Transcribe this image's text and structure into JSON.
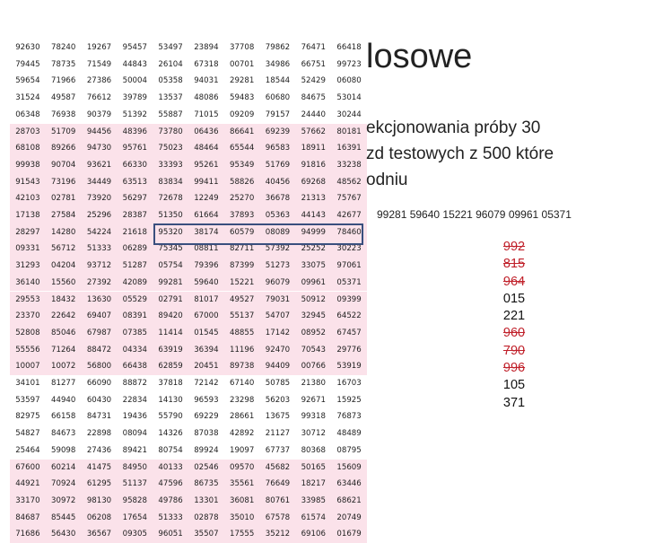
{
  "slide": {
    "title_fragment": "losowe",
    "description_lines": [
      "ekcjonowania próby 30",
      "zd testowych z 500 które",
      "odniu"
    ],
    "sequence": "99281 59640 15221 96079 09961 05371",
    "numbers": [
      {
        "text": "992",
        "struck": true
      },
      {
        "text": "815",
        "struck": true
      },
      {
        "text": "964",
        "struck": true
      },
      {
        "text": "015",
        "struck": false
      },
      {
        "text": "221",
        "struck": false
      },
      {
        "text": "960",
        "struck": true
      },
      {
        "text": "790",
        "struck": true
      },
      {
        "text": "996",
        "struck": true
      },
      {
        "text": "105",
        "struck": false
      },
      {
        "text": "371",
        "struck": false
      }
    ]
  },
  "random_table": {
    "rows": [
      [
        "92630",
        "78240",
        "19267",
        "95457",
        "53497",
        "23894",
        "37708",
        "79862",
        "76471",
        "66418"
      ],
      [
        "79445",
        "78735",
        "71549",
        "44843",
        "26104",
        "67318",
        "00701",
        "34986",
        "66751",
        "99723"
      ],
      [
        "59654",
        "71966",
        "27386",
        "50004",
        "05358",
        "94031",
        "29281",
        "18544",
        "52429",
        "06080"
      ],
      [
        "31524",
        "49587",
        "76612",
        "39789",
        "13537",
        "48086",
        "59483",
        "60680",
        "84675",
        "53014"
      ],
      [
        "06348",
        "76938",
        "90379",
        "51392",
        "55887",
        "71015",
        "09209",
        "79157",
        "24440",
        "30244"
      ],
      [
        "28703",
        "51709",
        "94456",
        "48396",
        "73780",
        "06436",
        "86641",
        "69239",
        "57662",
        "80181"
      ],
      [
        "68108",
        "89266",
        "94730",
        "95761",
        "75023",
        "48464",
        "65544",
        "96583",
        "18911",
        "16391"
      ],
      [
        "99938",
        "90704",
        "93621",
        "66330",
        "33393",
        "95261",
        "95349",
        "51769",
        "91816",
        "33238"
      ],
      [
        "91543",
        "73196",
        "34449",
        "63513",
        "83834",
        "99411",
        "58826",
        "40456",
        "69268",
        "48562"
      ],
      [
        "42103",
        "02781",
        "73920",
        "56297",
        "72678",
        "12249",
        "25270",
        "36678",
        "21313",
        "75767"
      ],
      [
        "17138",
        "27584",
        "25296",
        "28387",
        "51350",
        "61664",
        "37893",
        "05363",
        "44143",
        "42677"
      ],
      [
        "28297",
        "14280",
        "54224",
        "21618",
        "95320",
        "38174",
        "60579",
        "08089",
        "94999",
        "78460"
      ],
      [
        "09331",
        "56712",
        "51333",
        "06289",
        "75345",
        "08811",
        "82711",
        "57392",
        "25252",
        "30223"
      ],
      [
        "31293",
        "04204",
        "93712",
        "51287",
        "05754",
        "79396",
        "87399",
        "51273",
        "33075",
        "97061"
      ],
      [
        "36140",
        "15560",
        "27392",
        "42089",
        "99281",
        "59640",
        "15221",
        "96079",
        "09961",
        "05371"
      ],
      [
        "29553",
        "18432",
        "13630",
        "05529",
        "02791",
        "81017",
        "49527",
        "79031",
        "50912",
        "09399"
      ],
      [
        "23370",
        "22642",
        "69407",
        "08391",
        "89420",
        "67000",
        "55137",
        "54707",
        "32945",
        "64522"
      ],
      [
        "52808",
        "85046",
        "67987",
        "07385",
        "11414",
        "01545",
        "48855",
        "17142",
        "08952",
        "67457"
      ],
      [
        "55556",
        "71264",
        "88472",
        "04334",
        "63919",
        "36394",
        "11196",
        "92470",
        "70543",
        "29776"
      ],
      [
        "10007",
        "10072",
        "56800",
        "66438",
        "62859",
        "20451",
        "89738",
        "94409",
        "00766",
        "53919"
      ],
      [
        "34101",
        "81277",
        "66090",
        "88872",
        "37818",
        "72142",
        "67140",
        "50785",
        "21380",
        "16703"
      ],
      [
        "53597",
        "44940",
        "60430",
        "22834",
        "14130",
        "96593",
        "23298",
        "56203",
        "92671",
        "15925"
      ],
      [
        "82975",
        "66158",
        "84731",
        "19436",
        "55790",
        "69229",
        "28661",
        "13675",
        "99318",
        "76873"
      ],
      [
        "54827",
        "84673",
        "22898",
        "08094",
        "14326",
        "87038",
        "42892",
        "21127",
        "30712",
        "48489"
      ],
      [
        "25464",
        "59098",
        "27436",
        "89421",
        "80754",
        "89924",
        "19097",
        "67737",
        "80368",
        "08795"
      ],
      [
        "67600",
        "60214",
        "41475",
        "84950",
        "40133",
        "02546",
        "09570",
        "45682",
        "50165",
        "15609"
      ],
      [
        "44921",
        "70924",
        "61295",
        "51137",
        "47596",
        "86735",
        "35561",
        "76649",
        "18217",
        "63446"
      ],
      [
        "33170",
        "30972",
        "98130",
        "95828",
        "49786",
        "13301",
        "36081",
        "80761",
        "33985",
        "68621"
      ],
      [
        "84687",
        "85445",
        "06208",
        "17654",
        "51333",
        "02878",
        "35010",
        "67578",
        "61574",
        "20749"
      ],
      [
        "71686",
        "56430",
        "36567",
        "09305",
        "96051",
        "35507",
        "17555",
        "35212",
        "69106",
        "01679"
      ]
    ]
  }
}
